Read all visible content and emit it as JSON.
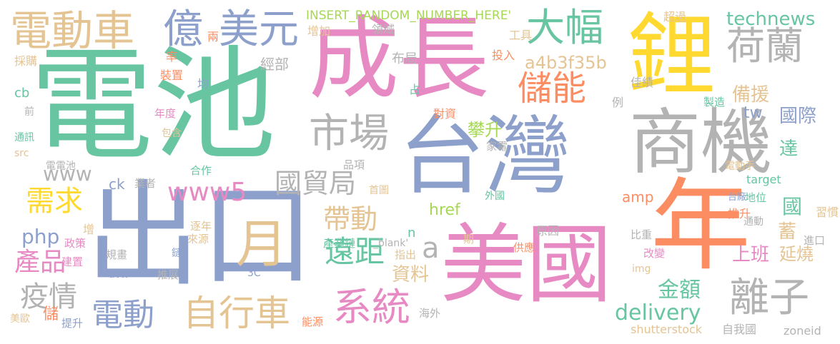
{
  "palette": {
    "green": "#67c5a2",
    "orange": "#fc8d62",
    "blue": "#8da0cb",
    "pink": "#e78ac3",
    "lime": "#a6d854",
    "yellow": "#ffd92f",
    "tan": "#e5c494",
    "gray": "#b3b3b3"
  },
  "words": [
    {
      "text": "電池",
      "color": "#67c5a2"
    },
    {
      "text": "成長",
      "color": "#e78ac3"
    },
    {
      "text": "鋰",
      "color": "#ffd92f"
    },
    {
      "text": "台灣",
      "color": "#8da0cb"
    },
    {
      "text": "出口",
      "color": "#8da0cb"
    },
    {
      "text": "年",
      "color": "#fc8d62"
    },
    {
      "text": "美國",
      "color": "#e78ac3"
    },
    {
      "text": "商機",
      "color": "#b3b3b3"
    },
    {
      "text": "電動車",
      "color": "#e5c494"
    },
    {
      "text": "億",
      "color": "#8da0cb"
    },
    {
      "text": "美元",
      "color": "#8da0cb"
    },
    {
      "text": "大幅",
      "color": "#67c5a2"
    },
    {
      "text": "荷蘭",
      "color": "#b3b3b3"
    },
    {
      "text": "儲能",
      "color": "#fc8d62"
    },
    {
      "text": "市場",
      "color": "#b3b3b3"
    },
    {
      "text": "月",
      "color": "#e5c494"
    },
    {
      "text": "系統",
      "color": "#e78ac3"
    },
    {
      "text": "自行車",
      "color": "#e5c494"
    },
    {
      "text": "電動",
      "color": "#8da0cb"
    },
    {
      "text": "離子",
      "color": "#b3b3b3"
    },
    {
      "text": "國貿局",
      "color": "#b3b3b3"
    },
    {
      "text": "www5",
      "color": "#e78ac3"
    },
    {
      "text": "遠距",
      "color": "#67c5a2"
    },
    {
      "text": "帶動",
      "color": "#e5c494"
    },
    {
      "text": "需求",
      "color": "#ffd92f"
    },
    {
      "text": "疫情",
      "color": "#b3b3b3"
    },
    {
      "text": "產品",
      "color": "#e78ac3"
    },
    {
      "text": "technews",
      "color": "#67c5a2"
    },
    {
      "text": "a4b3f35b",
      "color": "#e5c494"
    },
    {
      "text": "INSERT_RANDOM_NUMBER_HERE'",
      "color": "#a6d854"
    },
    {
      "text": "delivery",
      "color": "#67c5a2"
    },
    {
      "text": "金額",
      "color": "#67c5a2"
    },
    {
      "text": "國際",
      "color": "#8da0cb"
    },
    {
      "text": "備援",
      "color": "#e5c494"
    },
    {
      "text": "tw",
      "color": "#8da0cb"
    },
    {
      "text": "攀升",
      "color": "#a6d854"
    },
    {
      "text": "達",
      "color": "#67c5a2"
    },
    {
      "text": "www",
      "color": "#b3b3b3"
    },
    {
      "text": "php",
      "color": "#8da0cb"
    },
    {
      "text": "a",
      "color": "#b3b3b3"
    },
    {
      "text": "資料",
      "color": "#e5c494"
    },
    {
      "text": "上班",
      "color": "#e78ac3"
    },
    {
      "text": "延燒",
      "color": "#e5c494"
    },
    {
      "text": "蓄",
      "color": "#e5c494"
    },
    {
      "text": "國",
      "color": "#67c5a2"
    },
    {
      "text": "href",
      "color": "#a6d854"
    },
    {
      "text": "amp",
      "color": "#fc8d62"
    },
    {
      "text": "ck",
      "color": "#8da0cb"
    },
    {
      "text": "業者",
      "color": "#b3b3b3"
    },
    {
      "text": "儲",
      "color": "#fc8d62"
    },
    {
      "text": "shutterstock",
      "color": "#e5c494"
    },
    {
      "text": "自我國",
      "color": "#b3b3b3"
    },
    {
      "text": "zoneid",
      "color": "#b3b3b3"
    },
    {
      "text": "經部",
      "color": "#b3b3b3"
    },
    {
      "text": "布局",
      "color": "#b3b3b3"
    },
    {
      "text": "領域",
      "color": "#b3b3b3"
    },
    {
      "text": "增加",
      "color": "#e5c494"
    },
    {
      "text": "兩",
      "color": "#fc8d62"
    },
    {
      "text": "超過",
      "color": "#e5c494"
    },
    {
      "text": "工具",
      "color": "#e5c494"
    },
    {
      "text": "投入",
      "color": "#fc8d62"
    },
    {
      "text": "佳績",
      "color": "#b3b3b3"
    },
    {
      "text": "採購",
      "color": "#e5c494"
    },
    {
      "text": "率",
      "color": "#fc8d62"
    },
    {
      "text": "裝置",
      "color": "#fc8d62"
    },
    {
      "text": "均",
      "color": "#8da0cb"
    },
    {
      "text": "cb",
      "color": "#67c5a2"
    },
    {
      "text": "前",
      "color": "#b3b3b3"
    },
    {
      "text": "年度",
      "color": "#e78ac3"
    },
    {
      "text": "占",
      "color": "#67c5a2"
    },
    {
      "text": "對資",
      "color": "#fc8d62"
    },
    {
      "text": "例",
      "color": "#b3b3b3"
    },
    {
      "text": "製造",
      "color": "#67c5a2"
    },
    {
      "text": "包含",
      "color": "#e5c494"
    },
    {
      "text": "通訊",
      "color": "#67c5a2"
    },
    {
      "text": "src",
      "color": "#e5c494"
    },
    {
      "text": "電電池",
      "color": "#b3b3b3"
    },
    {
      "text": "合作",
      "color": "#67c5a2"
    },
    {
      "text": "品項",
      "color": "#b3b3b3"
    },
    {
      "text": "家電",
      "color": "#b3b3b3"
    },
    {
      "text": "電動手",
      "color": "#e5c494"
    },
    {
      "text": "target",
      "color": "#67c5a2"
    },
    {
      "text": "首圖",
      "color": "#e5c494"
    },
    {
      "text": "外國",
      "color": "#67c5a2"
    },
    {
      "text": "台廠",
      "color": "#8da0cb"
    },
    {
      "text": "地位",
      "color": "#67c5a2"
    },
    {
      "text": "推升",
      "color": "#fc8d62"
    },
    {
      "text": "習慣",
      "color": "#e5c494"
    },
    {
      "text": "逐年",
      "color": "#e5c494"
    },
    {
      "text": "來源",
      "color": "#e5c494"
    },
    {
      "text": "政策",
      "color": "#e78ac3"
    },
    {
      "text": "增",
      "color": "#e5c494"
    },
    {
      "text": "n",
      "color": "#67c5a2"
    },
    {
      "text": "產業鏈",
      "color": "#67c5a2"
    },
    {
      "text": "_blank'",
      "color": "#b3b3b3"
    },
    {
      "text": "原因",
      "color": "#b3b3b3"
    },
    {
      "text": "通動",
      "color": "#b3b3b3"
    },
    {
      "text": "進口",
      "color": "#b3b3b3"
    },
    {
      "text": "比重",
      "color": "#b3b3b3"
    },
    {
      "text": "期",
      "color": "#e5c494"
    },
    {
      "text": "指出",
      "color": "#e5c494"
    },
    {
      "text": "供應",
      "color": "#fc8d62"
    },
    {
      "text": "改變",
      "color": "#e78ac3"
    },
    {
      "text": "img",
      "color": "#e5c494"
    },
    {
      "text": "建置",
      "color": "#e78ac3"
    },
    {
      "text": "規畫",
      "color": "#b3b3b3"
    },
    {
      "text": "鏈",
      "color": "#8da0cb"
    },
    {
      "text": "avw",
      "color": "#8da0cb"
    },
    {
      "text": "推展",
      "color": "#b3b3b3"
    },
    {
      "text": "3C",
      "color": "#8da0cb"
    },
    {
      "text": "海外",
      "color": "#b3b3b3"
    },
    {
      "text": "能源",
      "color": "#fc8d62"
    },
    {
      "text": "美歐",
      "color": "#e5c494"
    },
    {
      "text": "提升",
      "color": "#8da0cb"
    }
  ]
}
